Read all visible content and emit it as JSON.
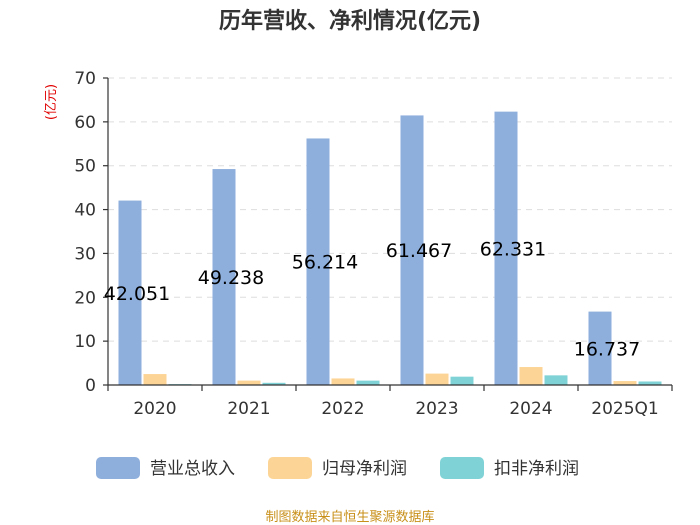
{
  "chart_data": {
    "type": "bar",
    "title": "历年营收、净利情况(亿元)",
    "ylabel": "(亿元)",
    "xlabel": "",
    "ylim": [
      0,
      70
    ],
    "yticks": [
      0,
      10,
      20,
      30,
      40,
      50,
      60,
      70
    ],
    "categories": [
      "2020",
      "2021",
      "2022",
      "2023",
      "2024",
      "2025Q1"
    ],
    "series": [
      {
        "name": "营业总收入",
        "color": "#8eaedc",
        "values": [
          42.051,
          49.238,
          56.214,
          61.467,
          62.331,
          16.737
        ],
        "show_labels": true
      },
      {
        "name": "归母净利润",
        "color": "#fcd596",
        "values": [
          2.5,
          1.0,
          1.5,
          2.6,
          4.1,
          0.9
        ],
        "show_labels": false
      },
      {
        "name": "扣非净利润",
        "color": "#7fd3d6",
        "values": [
          0.2,
          0.5,
          1.0,
          1.9,
          2.2,
          0.8
        ],
        "show_labels": false
      }
    ],
    "data_labels": [
      "42.051",
      "49.238",
      "56.214",
      "61.467",
      "62.331",
      "16.737"
    ],
    "grid": true,
    "legend_position": "bottom-center"
  },
  "footer": {
    "source": "制图数据来自恒生聚源数据库"
  }
}
